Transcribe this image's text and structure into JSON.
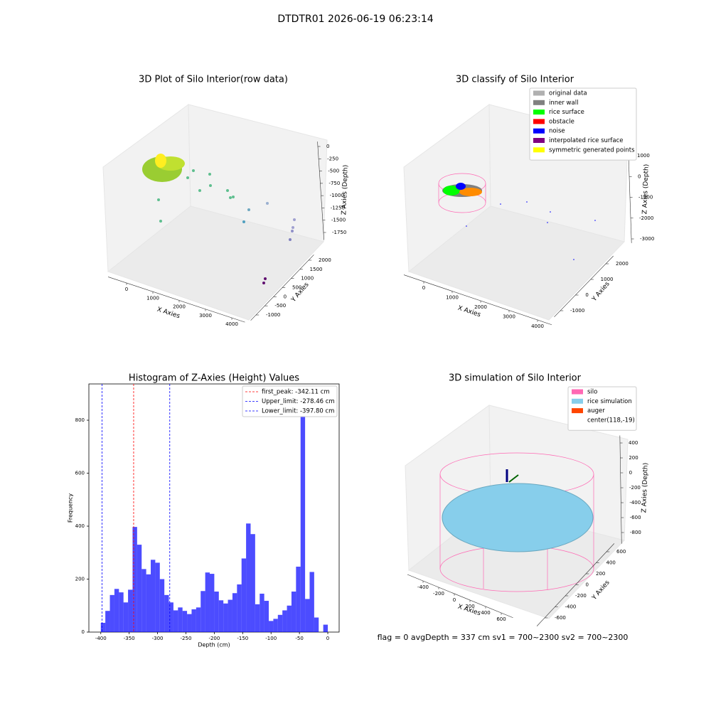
{
  "title": "DTDTR01 2026-06-19 06:23:14",
  "status": "flag = 0     avgDepth = 337 cm  sv1 = 700~2300  sv2 = 700~2300",
  "chart_data": [
    {
      "type": "scatter3d",
      "title": "3D Plot of Silo Interior(row data)",
      "xlabel": "X Axies",
      "ylabel": "Y Axies",
      "zlabel": "Z Axies (Depth)",
      "xlim": [
        -700,
        4500
      ],
      "ylim": [
        -1300,
        2300
      ],
      "zlim": [
        -1900,
        100
      ],
      "xticks": [
        0,
        1000,
        2000,
        3000,
        4000
      ],
      "yticks": [
        -1000,
        -500,
        0,
        500,
        1000,
        1500,
        2000
      ],
      "zticks": [
        0,
        -250,
        -500,
        -750,
        -1000,
        -1250,
        -1500,
        -1750
      ]
    },
    {
      "type": "scatter3d",
      "title": "3D classify of Silo Interior",
      "xlabel": "X Axies",
      "ylabel": "Y Axies",
      "zlabel": "Z Axies (Depth)",
      "xlim": [
        -700,
        4500
      ],
      "ylim": [
        -1400,
        2500
      ],
      "zlim": [
        -3200,
        1300
      ],
      "xticks": [
        0,
        1000,
        2000,
        3000,
        4000
      ],
      "yticks": [
        -1000,
        0,
        1000,
        2000
      ],
      "zticks": [
        1000,
        0,
        -1000,
        -2000,
        -3000
      ],
      "legend": [
        {
          "name": "original data",
          "color": "#b0b0b0"
        },
        {
          "name": "inner wall",
          "color": "#808080"
        },
        {
          "name": "rice surface",
          "color": "#00ff00"
        },
        {
          "name": "obstacle",
          "color": "#ff0000"
        },
        {
          "name": "noise",
          "color": "#0000ff"
        },
        {
          "name": "interpolated rice surface",
          "color": "#800080"
        },
        {
          "name": "symmetric generated points",
          "color": "#ffff00"
        }
      ]
    },
    {
      "type": "histogram",
      "title": "Histogram of Z-Axies (Height) Values",
      "xlabel": "Depth (cm)",
      "ylabel": "Frequency",
      "color": "#0000ff",
      "bins": [
        -400,
        -392,
        -384,
        -376,
        -368,
        -360,
        -352,
        -344,
        -336,
        -328,
        -320,
        -312,
        -304,
        -296,
        -288,
        -280,
        -272,
        -264,
        -256,
        -248,
        -240,
        -232,
        -224,
        -216,
        -208,
        -200,
        -192,
        -184,
        -176,
        -168,
        -160,
        -152,
        -144,
        -136,
        -128,
        -120,
        -112,
        -104,
        -96,
        -88,
        -80,
        -72,
        -64,
        -56,
        -48,
        -40,
        -32,
        -24,
        -16,
        -8,
        0
      ],
      "values": [
        35,
        80,
        140,
        163,
        150,
        112,
        160,
        397,
        330,
        238,
        218,
        273,
        262,
        200,
        140,
        112,
        82,
        93,
        80,
        68,
        86,
        93,
        155,
        225,
        220,
        153,
        120,
        108,
        122,
        147,
        180,
        278,
        410,
        370,
        105,
        145,
        118,
        42,
        50,
        65,
        82,
        100,
        153,
        247,
        885,
        125,
        227,
        55,
        0,
        28
      ],
      "xlim": [
        -421,
        20
      ],
      "ylim": [
        0,
        937
      ],
      "xticks": [
        -400,
        -350,
        -300,
        -250,
        -200,
        -150,
        -100,
        -50,
        0
      ],
      "yticks": [
        0,
        200,
        400,
        600,
        800
      ],
      "lines": [
        {
          "label": "first_peak: -342.11 cm",
          "value": -342.11,
          "color": "#ff0000"
        },
        {
          "label": "Upper_limit: -278.46 cm",
          "value": -278.46,
          "color": "#0000ff"
        },
        {
          "label": "Lower_limit: -397.80 cm",
          "value": -397.8,
          "color": "#0000ff"
        }
      ]
    },
    {
      "type": "surface3d",
      "title": "3D simulation of Silo Interior",
      "xlabel": "X Axies",
      "ylabel": "Y Axies",
      "zlabel": "Z Axies (Depth)",
      "xlim": [
        -600,
        750
      ],
      "ylim": [
        -750,
        750
      ],
      "zlim": [
        -950,
        500
      ],
      "xticks": [
        -400,
        -200,
        0,
        200,
        400,
        600
      ],
      "yticks": [
        -600,
        -400,
        -200,
        0,
        200,
        400,
        600
      ],
      "zticks": [
        400,
        200,
        0,
        -200,
        -400,
        -600,
        -800
      ],
      "legend": [
        {
          "name": "silo",
          "color": "#ff69b4"
        },
        {
          "name": "rice simulation",
          "color": "#87ceeb"
        },
        {
          "name": "auger",
          "color": "#ff4500"
        },
        {
          "name": "center(118,-19)"
        }
      ]
    }
  ]
}
